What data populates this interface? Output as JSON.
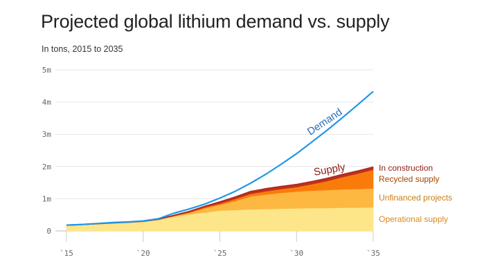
{
  "chart_data": {
    "type": "area",
    "title": "Projected global lithium demand vs. supply",
    "subtitle": "In tons, 2015 to 2035",
    "x": [
      2015,
      2016,
      2017,
      2018,
      2019,
      2020,
      2021,
      2022,
      2023,
      2024,
      2025,
      2026,
      2027,
      2028,
      2029,
      2030,
      2031,
      2032,
      2033,
      2034,
      2035
    ],
    "xticks": [
      2015,
      2020,
      2025,
      2030,
      2035
    ],
    "xtick_labels": [
      "`15",
      "`20",
      "`25",
      "`30",
      "`35"
    ],
    "ylim": [
      0,
      5000000
    ],
    "yticks": [
      0,
      1000000,
      2000000,
      3000000,
      4000000,
      5000000
    ],
    "ytick_labels": [
      "0",
      "1m",
      "2m",
      "3m",
      "4m",
      "5m"
    ],
    "grid": true,
    "demand": {
      "name": "Demand",
      "color": "#1f97e8",
      "label_color": "#2a6db8",
      "values": [
        180000,
        200000,
        230000,
        260000,
        280000,
        310000,
        380000,
        550000,
        680000,
        830000,
        1020000,
        1230000,
        1480000,
        1760000,
        2070000,
        2400000,
        2760000,
        3130000,
        3520000,
        3920000,
        4330000
      ]
    },
    "supply_label": {
      "text": "Supply",
      "color": "#8b1a12"
    },
    "supply_series": [
      {
        "name": "Operational supply",
        "color": "#fde68a",
        "label_color": "#d98a1a",
        "values": [
          180000,
          200000,
          225000,
          250000,
          270000,
          300000,
          360000,
          440000,
          510000,
          570000,
          630000,
          650000,
          670000,
          680000,
          690000,
          700000,
          710000,
          710000,
          720000,
          720000,
          730000
        ]
      },
      {
        "name": "Unfinanced projects",
        "color": "#fdb842",
        "label_color": "#c87d10",
        "values": [
          0,
          0,
          0,
          0,
          0,
          0,
          0,
          20000,
          50000,
          130000,
          180000,
          280000,
          400000,
          450000,
          490000,
          520000,
          540000,
          560000,
          570000,
          580000,
          590000
        ]
      },
      {
        "name": "Recycled supply",
        "color": "#f97c0b",
        "label_color": "#a64400",
        "values": [
          0,
          0,
          0,
          0,
          0,
          0,
          0,
          10000,
          20000,
          30000,
          40000,
          60000,
          80000,
          100000,
          120000,
          140000,
          200000,
          280000,
          380000,
          480000,
          580000
        ]
      },
      {
        "name": "In construction",
        "color": "#c0311f",
        "label_color": "#8b1a12",
        "values": [
          0,
          0,
          0,
          0,
          0,
          0,
          0,
          10000,
          20000,
          30000,
          50000,
          60000,
          70000,
          80000,
          80000,
          80000,
          80000,
          80000,
          80000,
          80000,
          80000
        ]
      }
    ]
  }
}
